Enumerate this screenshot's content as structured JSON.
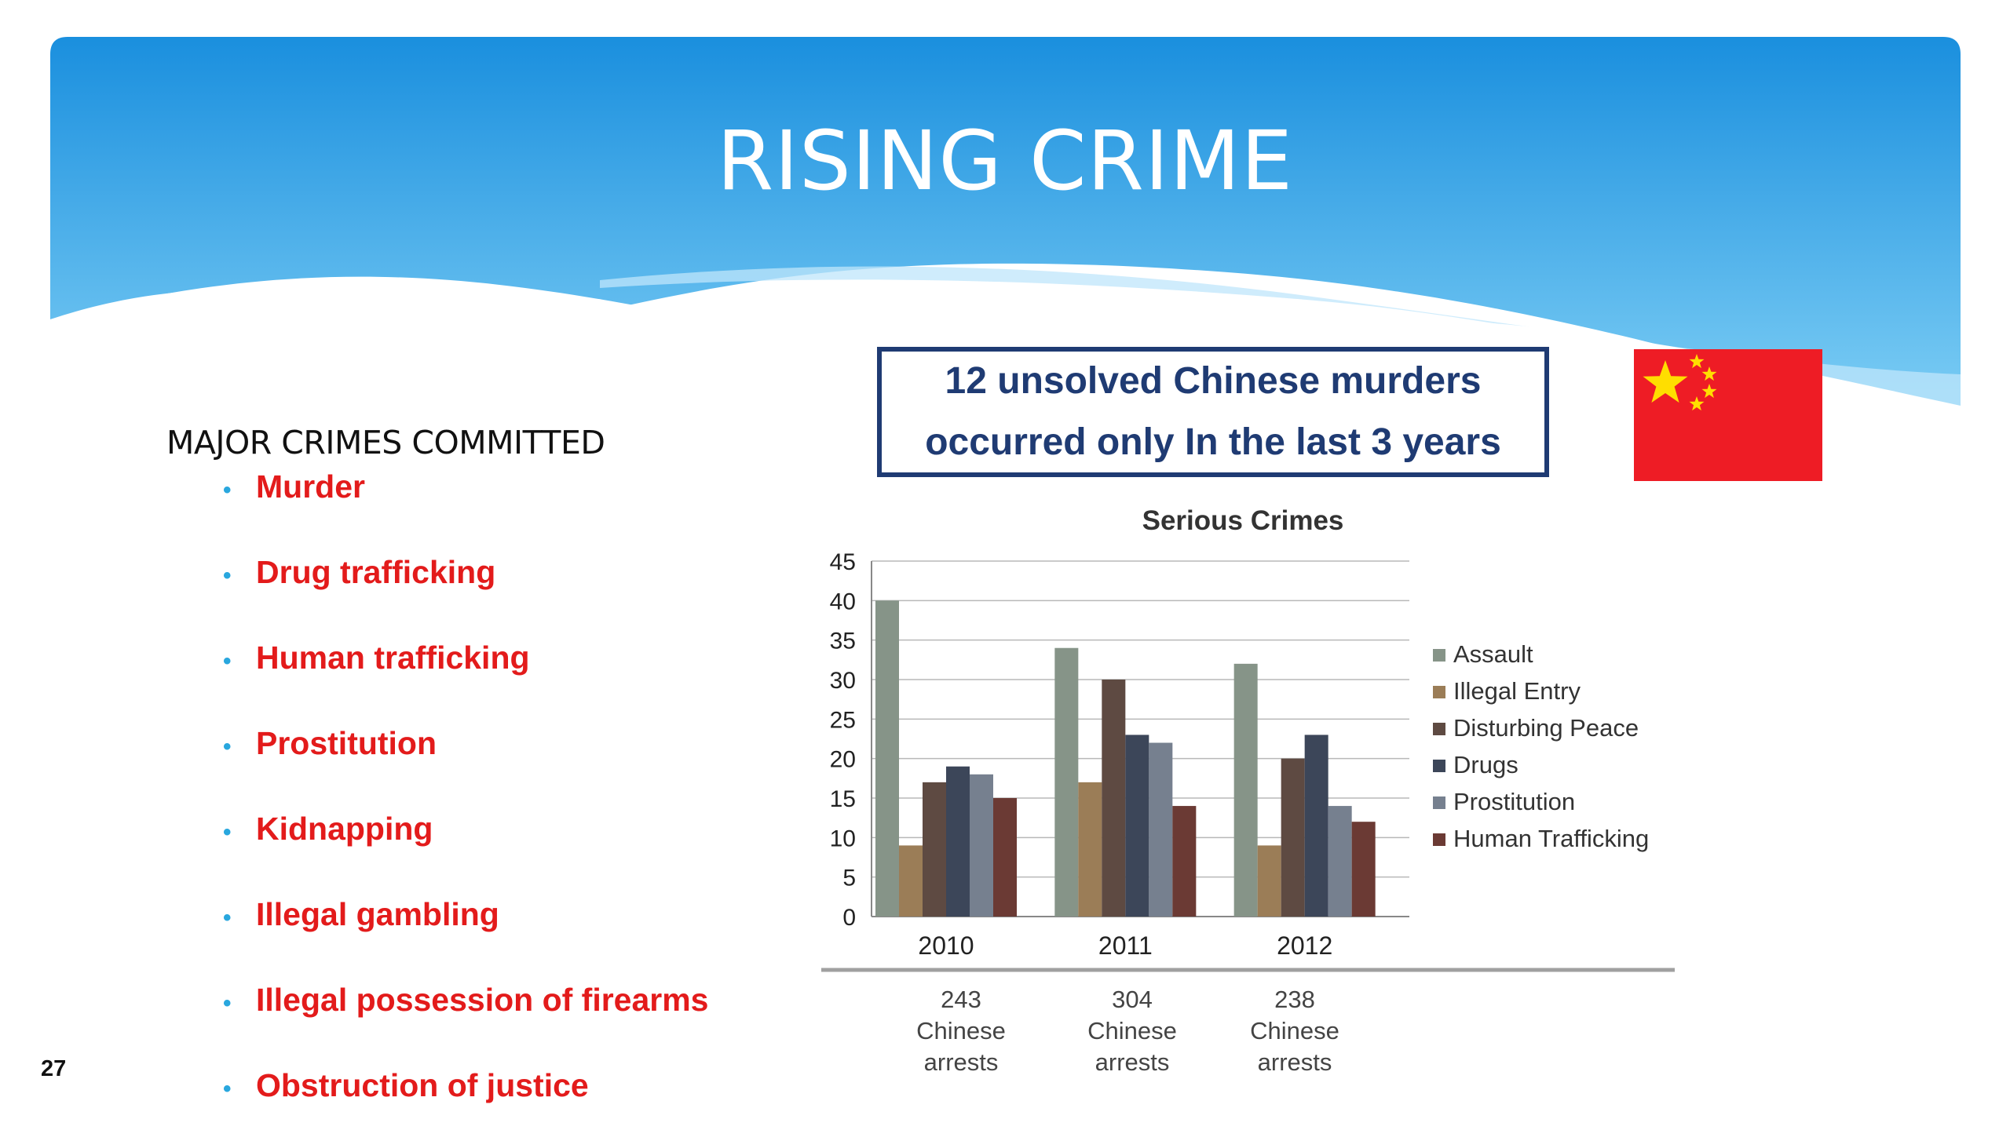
{
  "slide": {
    "title": "RISING CRIME",
    "callout": {
      "line1": "12 unsolved Chinese murders",
      "line2": "occurred only In the last 3 years"
    },
    "crimes_heading": "MAJOR CRIMES COMMITTED",
    "crimes": [
      "Murder",
      "Drug trafficking",
      "Human trafficking",
      "Prostitution",
      "Kidnapping",
      "Illegal gambling",
      "Illegal possession of firearms",
      "Obstruction of justice"
    ],
    "bullet_icon": "•",
    "page_number": "27",
    "colors": {
      "banner_top": "#1a8fde",
      "banner_bottom": "#7fcff5",
      "crime_text": "#e31b1b",
      "bullet": "#29a7de",
      "callout_border": "#1f3b73",
      "flag_red": "#ee1c25",
      "flag_star": "#ffde00"
    },
    "flag_icon": "china-flag-icon"
  },
  "chart_data": {
    "type": "bar",
    "title": "Serious Crimes",
    "categories": [
      "2010",
      "2011",
      "2012"
    ],
    "category_notes": [
      [
        "243",
        "Chinese",
        "arrests"
      ],
      [
        "304",
        "Chinese",
        "arrests"
      ],
      [
        "238",
        "Chinese",
        "arrests"
      ]
    ],
    "ylim": [
      0,
      45
    ],
    "yticks": [
      0,
      5,
      10,
      15,
      20,
      25,
      30,
      35,
      40,
      45
    ],
    "grid": true,
    "legend_position": "right",
    "series": [
      {
        "name": "Assault",
        "color": "#869488",
        "values": [
          40,
          34,
          32
        ]
      },
      {
        "name": "Illegal Entry",
        "color": "#9b7d57",
        "values": [
          9,
          17,
          9
        ]
      },
      {
        "name": "Disturbing Peace",
        "color": "#5e4a42",
        "values": [
          17,
          30,
          20
        ]
      },
      {
        "name": "Drugs",
        "color": "#3c4659",
        "values": [
          19,
          23,
          23
        ]
      },
      {
        "name": "Prostitution",
        "color": "#76808f",
        "values": [
          18,
          22,
          14
        ]
      },
      {
        "name": "Human Trafficking",
        "color": "#6b3a34",
        "values": [
          15,
          14,
          12
        ]
      }
    ]
  }
}
